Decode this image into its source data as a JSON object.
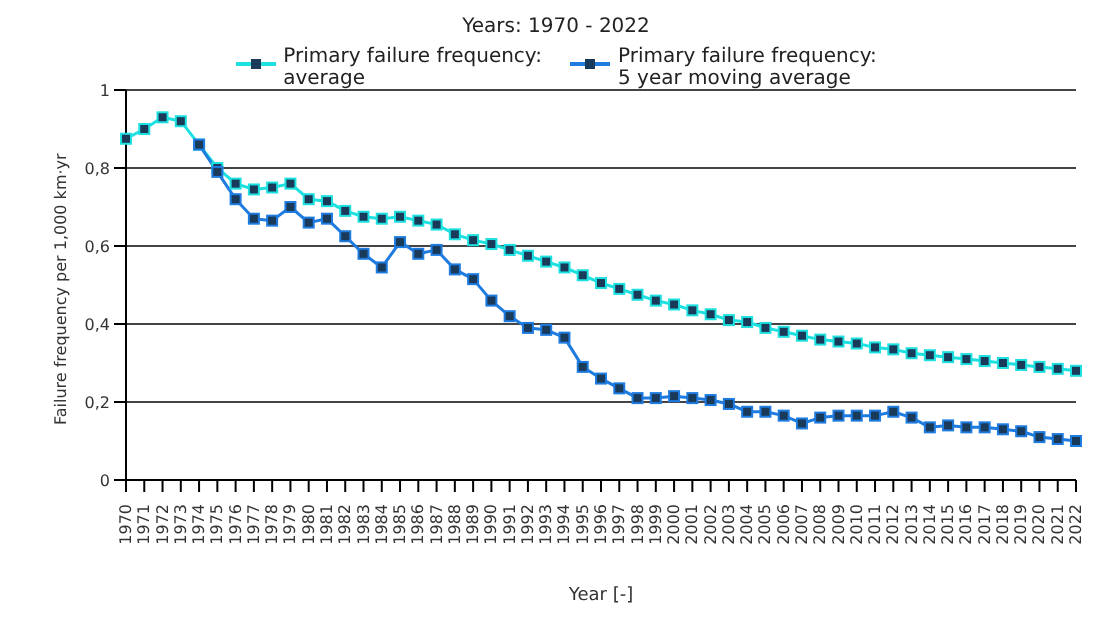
{
  "chart_data": {
    "type": "line",
    "title": "Years: 1970 - 2022",
    "xlabel": "Year [-]",
    "ylabel": "Failure frequency per 1,000 km·yr",
    "categories": [
      "1970",
      "1971",
      "1972",
      "1973",
      "1974",
      "1975",
      "1976",
      "1977",
      "1978",
      "1979",
      "1980",
      "1981",
      "1982",
      "1983",
      "1984",
      "1985",
      "1986",
      "1987",
      "1988",
      "1989",
      "1990",
      "1991",
      "1992",
      "1993",
      "1994",
      "1995",
      "1996",
      "1997",
      "1998",
      "1999",
      "2000",
      "2001",
      "2002",
      "2003",
      "2004",
      "2005",
      "2006",
      "2007",
      "2008",
      "2009",
      "2010",
      "2011",
      "2012",
      "2013",
      "2014",
      "2015",
      "2016",
      "2017",
      "2018",
      "2019",
      "2020",
      "2021",
      "2022"
    ],
    "series": [
      {
        "name": "Primary failure frequency: average",
        "color": "#1de0e0",
        "values": [
          0.875,
          0.9,
          0.93,
          0.92,
          0.86,
          0.8,
          0.76,
          0.745,
          0.75,
          0.76,
          0.72,
          0.715,
          0.69,
          0.675,
          0.67,
          0.675,
          0.665,
          0.655,
          0.63,
          0.615,
          0.605,
          0.59,
          0.575,
          0.56,
          0.545,
          0.525,
          0.505,
          0.49,
          0.475,
          0.46,
          0.45,
          0.435,
          0.425,
          0.41,
          0.405,
          0.39,
          0.38,
          0.37,
          0.36,
          0.355,
          0.35,
          0.34,
          0.335,
          0.325,
          0.32,
          0.315,
          0.31,
          0.305,
          0.3,
          0.295,
          0.29,
          0.285,
          0.28
        ]
      },
      {
        "name": "Primary failure frequency: 5 year moving average",
        "color": "#1e7be0",
        "values": [
          null,
          null,
          null,
          null,
          0.86,
          0.79,
          0.72,
          0.67,
          0.665,
          0.7,
          0.66,
          0.67,
          0.625,
          0.58,
          0.545,
          0.61,
          0.58,
          0.59,
          0.54,
          0.515,
          0.46,
          0.42,
          0.39,
          0.385,
          0.365,
          0.29,
          0.26,
          0.235,
          0.21,
          0.21,
          0.215,
          0.21,
          0.205,
          0.195,
          0.175,
          0.175,
          0.165,
          0.145,
          0.16,
          0.165,
          0.165,
          0.165,
          0.175,
          0.16,
          0.135,
          0.14,
          0.135,
          0.135,
          0.13,
          0.125,
          0.11,
          0.105,
          0.1
        ]
      }
    ],
    "ylim": [
      0,
      1
    ],
    "yticks": [
      0,
      {
        "value": 0.2,
        "label": "0,2"
      },
      {
        "value": 0.4,
        "label": "0,4"
      },
      {
        "value": 0.6,
        "label": "0,6"
      },
      {
        "value": 0.8,
        "label": "0,8"
      },
      1
    ],
    "grid": "y",
    "legend": "top",
    "marker": "square",
    "line_style": "solid"
  }
}
